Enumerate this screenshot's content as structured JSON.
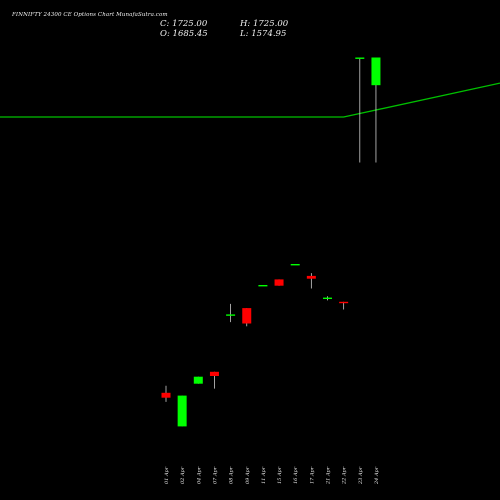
{
  "header": {
    "title": "FINNIFTY 24300  CE Options  Chart MunafaSutra.com",
    "close_label": "C:",
    "close_value": "1725.00",
    "open_label": "O:",
    "open_value": "1685.45",
    "high_label": "H:",
    "high_value": "1725.00",
    "low_label": "L:",
    "low_value": "1574.95"
  },
  "colors": {
    "background": "#000000",
    "up": "#00ff00",
    "down": "#ff0000",
    "wick": "#cccccc",
    "moving_average": "#00c000"
  },
  "chart_data": {
    "type": "candlestick",
    "title": "",
    "xlabel": "",
    "ylabel": "",
    "grid": false,
    "x": [
      "01 Apr",
      "02 Apr",
      "04 Apr",
      "07 Apr",
      "08 Apr",
      "09 Apr",
      "11 Apr",
      "15 Apr",
      "16 Apr",
      "17 Apr",
      "21 Apr",
      "22 Apr",
      "23 Apr",
      "24 Apr"
    ],
    "ylim": [
      1150,
      1750
    ],
    "candles": [
      {
        "date": "01 Apr",
        "open": 1246,
        "high": 1256,
        "low": 1233,
        "close": 1239
      },
      {
        "date": "02 Apr",
        "open": 1198,
        "high": 1242,
        "low": 1198,
        "close": 1242
      },
      {
        "date": "04 Apr",
        "open": 1259,
        "high": 1269,
        "low": 1259,
        "close": 1269
      },
      {
        "date": "07 Apr",
        "open": 1276,
        "high": 1276,
        "low": 1252,
        "close": 1270
      },
      {
        "date": "08 Apr",
        "open": 1358,
        "high": 1373,
        "low": 1347,
        "close": 1358
      },
      {
        "date": "09 Apr",
        "open": 1367,
        "high": 1367,
        "low": 1341,
        "close": 1345
      },
      {
        "date": "11 Apr",
        "open": 1400,
        "high": 1400,
        "low": 1400,
        "close": 1400
      },
      {
        "date": "15 Apr",
        "open": 1408,
        "high": 1408,
        "low": 1399,
        "close": 1399
      },
      {
        "date": "16 Apr",
        "open": 1430,
        "high": 1430,
        "low": 1430,
        "close": 1430
      },
      {
        "date": "17 Apr",
        "open": 1413,
        "high": 1417,
        "low": 1395,
        "close": 1409
      },
      {
        "date": "21 Apr",
        "open": 1380,
        "high": 1384,
        "low": 1378,
        "close": 1382
      },
      {
        "date": "22 Apr",
        "open": 1376,
        "high": 1376,
        "low": 1365,
        "close": 1374
      },
      {
        "date": "23 Apr",
        "open": 1725,
        "high": 1725,
        "low": 1575,
        "close": 1725
      },
      {
        "date": "24 Apr",
        "open": 1685.45,
        "high": 1725,
        "low": 1574.95,
        "close": 1725
      }
    ],
    "moving_average": [
      {
        "date": "01 Apr",
        "value": 1640
      },
      {
        "date": "22 Apr",
        "value": 1640
      },
      {
        "date": "24 Apr",
        "value": 1650
      }
    ]
  }
}
